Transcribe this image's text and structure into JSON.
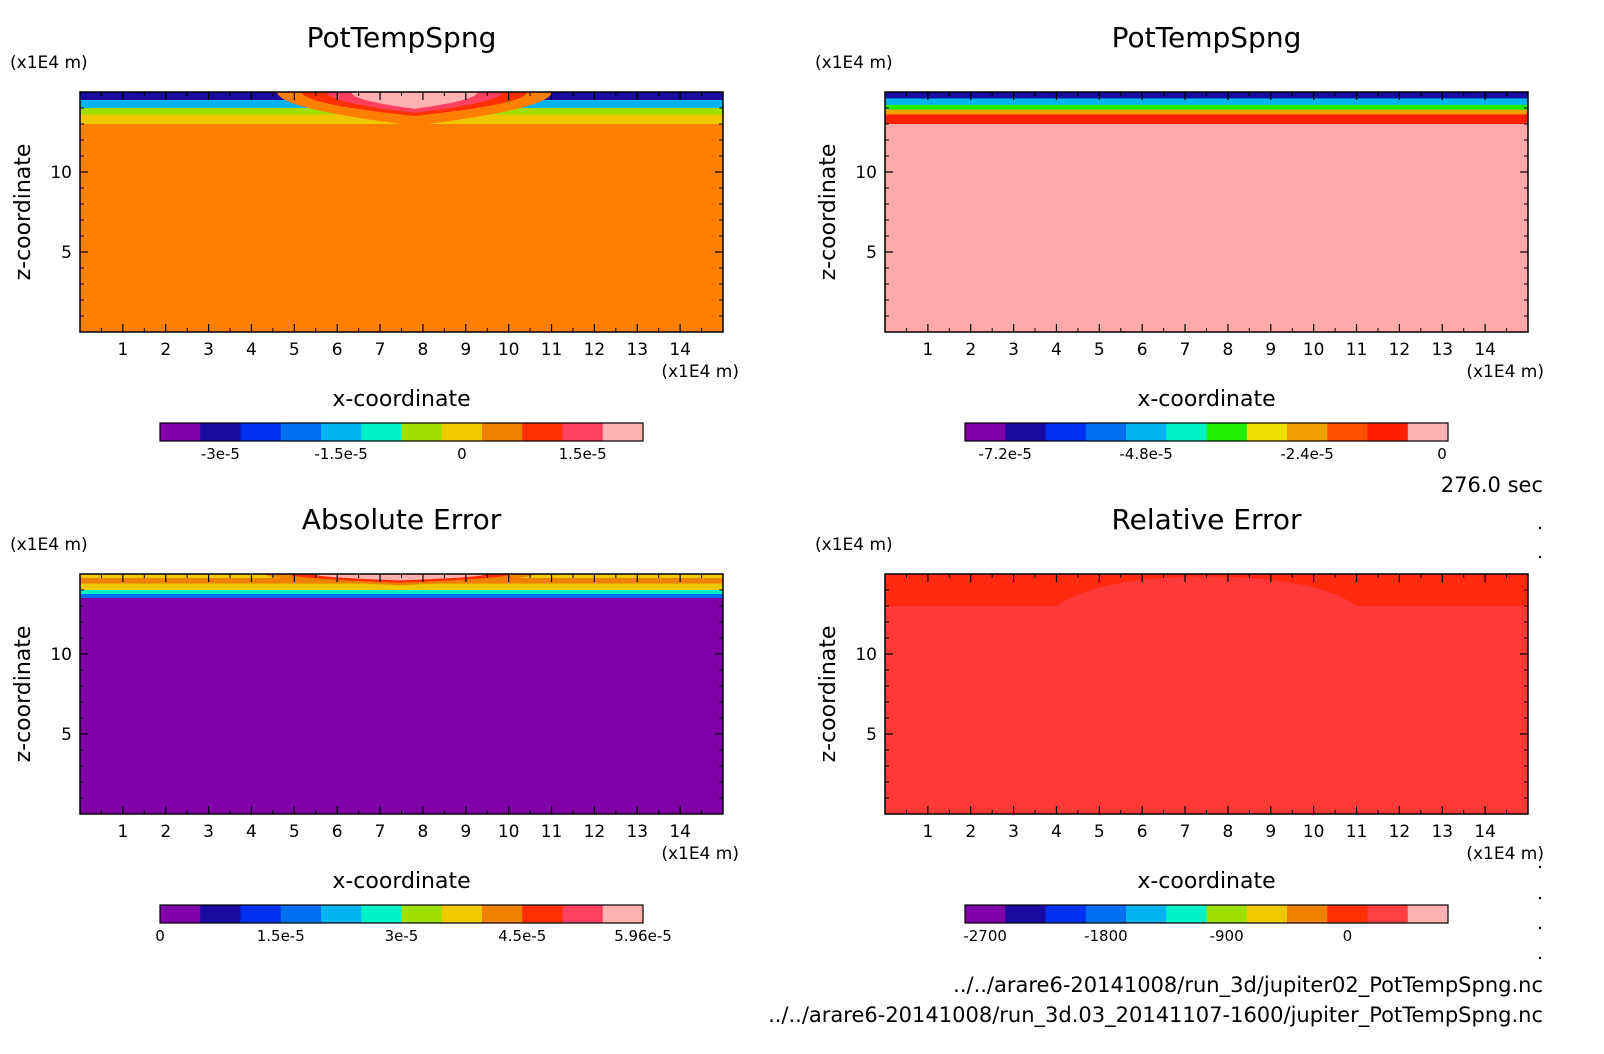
{
  "time_label": "276.0 sec",
  "files": [
    "../../arare6-20141008/run_3d/jupiter02_PotTempSpng.nc",
    "../../arare6-20141008/run_3d.03_20141107-1600/jupiter_PotTempSpng.nc"
  ],
  "chart_data": [
    {
      "type": "heatmap",
      "title": "PotTempSpng",
      "xlabel": "x-coordinate",
      "ylabel": "z-coordinate",
      "x_unit": "(x1E4 m)",
      "y_unit": "(x1E4 m)",
      "xlim": [
        0,
        15
      ],
      "ylim": [
        0,
        15
      ],
      "x_ticks": [
        "1",
        "2",
        "3",
        "4",
        "5",
        "6",
        "7",
        "8",
        "9",
        "10",
        "11",
        "12",
        "13",
        "14"
      ],
      "y_ticks": [
        "5",
        "10"
      ],
      "colorbar": {
        "colors": [
          "#8000a8",
          "#1a0aa0",
          "#0030f0",
          "#0070f0",
          "#00b4f0",
          "#00f0c8",
          "#a0e000",
          "#f0c800",
          "#f08000",
          "#ff3000",
          "#ff4060",
          "#ffb0b0"
        ],
        "tick_labels": [
          "-3e-5",
          "-1.5e-5",
          "0",
          "1.5e-5"
        ],
        "tick_index": [
          1.5,
          4.5,
          7.5,
          10.5
        ]
      },
      "field": {
        "background": "#ff8000",
        "top_band": [
          {
            "z_from": 13,
            "z_to": 15,
            "color": "#f0c800"
          },
          {
            "z_from": 13.6,
            "z_to": 15,
            "color": "#a0e000"
          },
          {
            "z_from": 14.0,
            "z_to": 15,
            "color": "#00b4f0"
          },
          {
            "z_from": 14.5,
            "z_to": 15,
            "color": "#1a0aa0"
          }
        ],
        "bump": {
          "x_from": 4.6,
          "x_to": 11.0,
          "layers": [
            {
              "z_low": 12.9,
              "color": "#ff8000"
            },
            {
              "z_low": 13.5,
              "color": "#ff3000"
            },
            {
              "z_low": 13.7,
              "color": "#ff4060"
            },
            {
              "z_low": 13.95,
              "color": "#ffb0b0"
            }
          ]
        }
      }
    },
    {
      "type": "heatmap",
      "title": "PotTempSpng",
      "xlabel": "x-coordinate",
      "ylabel": "z-coordinate",
      "x_unit": "(x1E4 m)",
      "y_unit": "(x1E4 m)",
      "xlim": [
        0,
        15
      ],
      "ylim": [
        0,
        15
      ],
      "x_ticks": [
        "1",
        "2",
        "3",
        "4",
        "5",
        "6",
        "7",
        "8",
        "9",
        "10",
        "11",
        "12",
        "13",
        "14"
      ],
      "y_ticks": [
        "5",
        "10"
      ],
      "colorbar": {
        "colors": [
          "#8000a8",
          "#1a0aa0",
          "#0030f0",
          "#0070f0",
          "#00b4f0",
          "#00f0c8",
          "#20f000",
          "#f0e000",
          "#f0a000",
          "#ff5000",
          "#ff2000",
          "#ffb0b0"
        ],
        "tick_labels": [
          "-7.2e-5",
          "-4.8e-5",
          "-2.4e-5",
          "0"
        ],
        "tick_index": [
          1,
          4.5,
          8.5,
          11.85
        ]
      },
      "field": {
        "background": "#ffaaaa",
        "top_band": [
          {
            "z_from": 13,
            "z_to": 15,
            "color": "#ff2000"
          },
          {
            "z_from": 13.6,
            "z_to": 15,
            "color": "#f0a000"
          },
          {
            "z_from": 13.9,
            "z_to": 15,
            "color": "#20f000"
          },
          {
            "z_from": 14.2,
            "z_to": 15,
            "color": "#00b4f0"
          },
          {
            "z_from": 14.6,
            "z_to": 15,
            "color": "#1a0aa0"
          }
        ]
      }
    },
    {
      "type": "heatmap",
      "title": "Absolute Error",
      "xlabel": "x-coordinate",
      "ylabel": "z-coordinate",
      "x_unit": "(x1E4 m)",
      "y_unit": "(x1E4 m)",
      "xlim": [
        0,
        15
      ],
      "ylim": [
        0,
        15
      ],
      "x_ticks": [
        "1",
        "2",
        "3",
        "4",
        "5",
        "6",
        "7",
        "8",
        "9",
        "10",
        "11",
        "12",
        "13",
        "14"
      ],
      "y_ticks": [
        "5",
        "10"
      ],
      "colorbar": {
        "colors": [
          "#8000a8",
          "#1a0aa0",
          "#0030f0",
          "#0070f0",
          "#00b4f0",
          "#00f0c8",
          "#a0e000",
          "#f0c800",
          "#f08000",
          "#ff3000",
          "#ff4060",
          "#ffb0b0"
        ],
        "tick_labels": [
          "0",
          "1.5e-5",
          "3e-5",
          "4.5e-5",
          "5.96e-5"
        ],
        "tick_index": [
          0,
          3,
          6,
          9,
          12
        ]
      },
      "field": {
        "background": "#8000a8",
        "top_band": [
          {
            "z_from": 13.5,
            "z_to": 15,
            "color": "#0070f0"
          },
          {
            "z_from": 13.75,
            "z_to": 15,
            "color": "#00f0c8"
          },
          {
            "z_from": 14.0,
            "z_to": 15,
            "color": "#f0c800"
          },
          {
            "z_from": 14.4,
            "z_to": 15,
            "color": "#f08000"
          },
          {
            "z_from": 14.75,
            "z_to": 15,
            "color": "#f0c800"
          }
        ],
        "bump": {
          "x_from": 4.3,
          "x_to": 10.6,
          "layers": [
            {
              "z_low": 14.3,
              "color": "#f08000"
            },
            {
              "z_low": 14.45,
              "color": "#ff3000"
            },
            {
              "z_low": 14.6,
              "color": "#ffb0b0"
            }
          ]
        }
      }
    },
    {
      "type": "heatmap",
      "title": "Relative Error",
      "xlabel": "x-coordinate",
      "ylabel": "z-coordinate",
      "x_unit": "(x1E4 m)",
      "y_unit": "(x1E4 m)",
      "xlim": [
        0,
        15
      ],
      "ylim": [
        0,
        15
      ],
      "x_ticks": [
        "1",
        "2",
        "3",
        "4",
        "5",
        "6",
        "7",
        "8",
        "9",
        "10",
        "11",
        "12",
        "13",
        "14"
      ],
      "y_ticks": [
        "5",
        "10"
      ],
      "colorbar": {
        "colors": [
          "#8000a8",
          "#1a0aa0",
          "#0030f0",
          "#0070f0",
          "#00b4f0",
          "#00f0c8",
          "#a0e000",
          "#f0c800",
          "#f08000",
          "#ff3000",
          "#ff4040",
          "#ffb0b0"
        ],
        "tick_labels": [
          "-2700",
          "-1800",
          "-900",
          "0"
        ],
        "tick_index": [
          0.5,
          3.5,
          6.5,
          9.5
        ]
      },
      "field": {
        "background": "#ff3838",
        "top_band": [
          {
            "z_from": 13.0,
            "z_to": 15,
            "color": "#ff2a10"
          }
        ],
        "bump_cut": {
          "x_from": 4.0,
          "x_to": 11.0,
          "color": "#ff3838"
        }
      }
    }
  ]
}
